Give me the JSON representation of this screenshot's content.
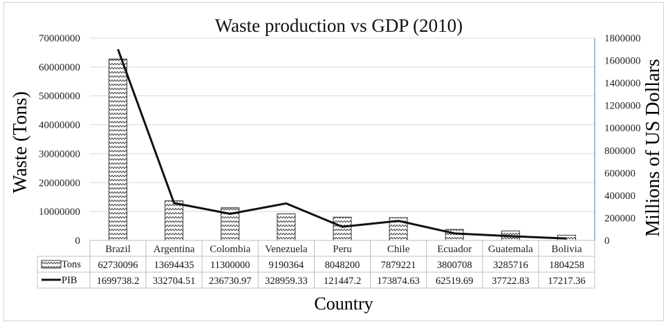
{
  "chart_data": {
    "type": "bar",
    "title": "Waste production vs GDP (2010)",
    "xlabel": "Country",
    "ylabel": "Waste  (Tons)",
    "y2label": "Millions of US Dollars",
    "categories": [
      "Brazil",
      "Argentina",
      "Colombia",
      "Venezuela",
      "Peru",
      "Chile",
      "Ecuador",
      "Guatemala",
      "Bolivia"
    ],
    "ylim": [
      0,
      70000000
    ],
    "y2lim": [
      0,
      1800000
    ],
    "yticks": [
      "0",
      "10000000",
      "20000000",
      "30000000",
      "40000000",
      "50000000",
      "60000000",
      "70000000"
    ],
    "y2ticks": [
      "0",
      "200000",
      "400000",
      "600000",
      "800000",
      "1000000",
      "1200000",
      "1400000",
      "1600000",
      "1800000"
    ],
    "grid": true,
    "series": [
      {
        "name": "Tons",
        "type": "bar",
        "axis": "left",
        "pattern": "zigzag",
        "values": [
          62730096,
          13694435,
          11300000,
          9190364,
          8048200,
          7879221,
          3800708,
          3285716,
          1804258
        ],
        "labels": [
          "62730096",
          "13694435",
          "11300000",
          "9190364",
          "8048200",
          "7879221",
          "3800708",
          "3285716",
          "1804258"
        ]
      },
      {
        "name": "PIB",
        "type": "line",
        "axis": "right",
        "color": "#111111",
        "values": [
          1699738.2,
          332704.51,
          236730.97,
          328959.33,
          121447.2,
          173874.63,
          62519.69,
          37722.83,
          17217.36
        ],
        "labels": [
          "1699738.2",
          "332704.51",
          "236730.97",
          "328959.33",
          "121447.2",
          "173874.63",
          "62519.69",
          "37722.83",
          "17217.36"
        ]
      }
    ]
  }
}
